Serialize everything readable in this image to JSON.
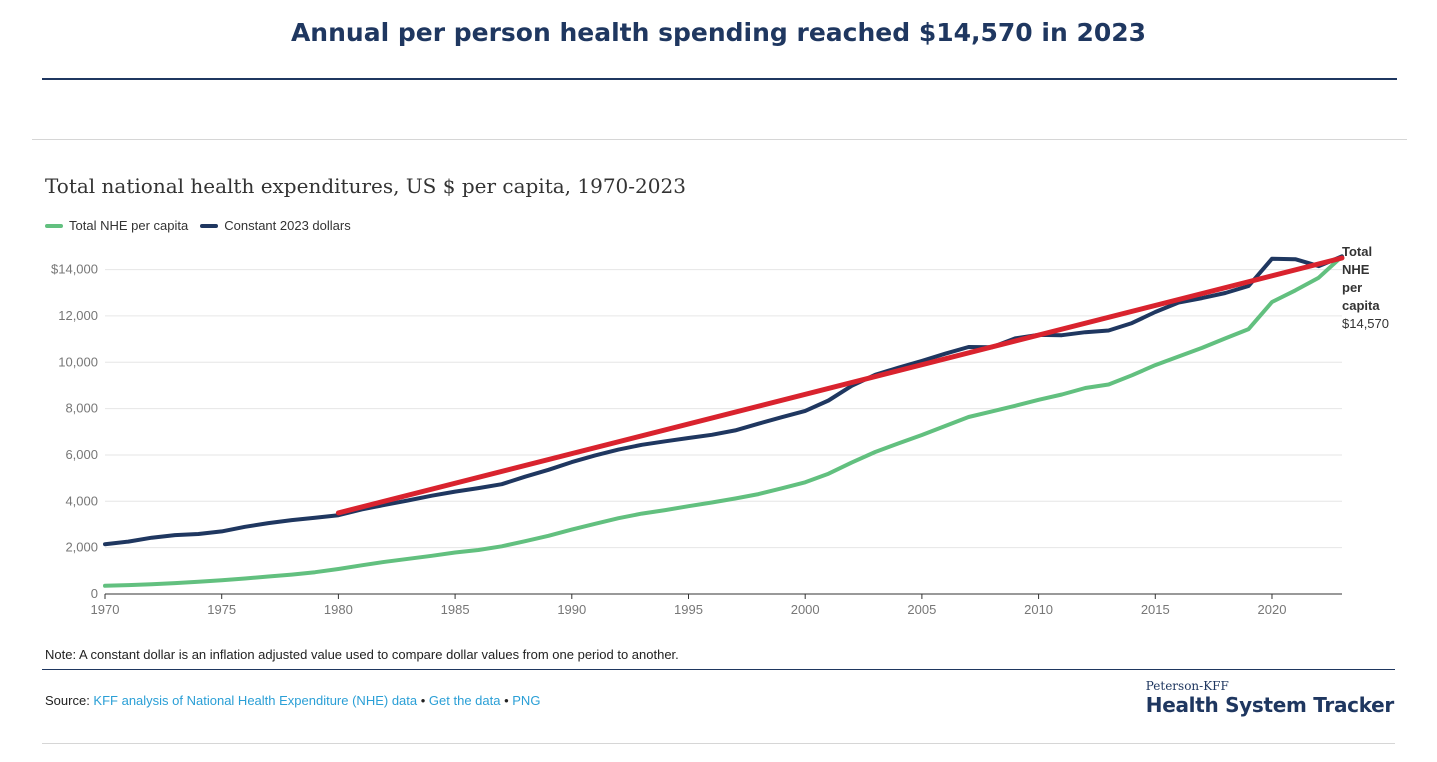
{
  "headline": "Annual per person health spending reached $14,570 in 2023",
  "note": "Note: A constant dollar is an inflation adjusted value used to compare dollar values from one period to another.",
  "source": {
    "prefix": "Source: ",
    "link1": "KFF analysis of National Health Expenditure (NHE) data",
    "sep": " • ",
    "link2": "Get the data",
    "link3": "PNG"
  },
  "brand": {
    "small": "Peterson-KFF",
    "big": "Health System Tracker"
  },
  "chart_data": {
    "type": "line",
    "title": "Total national health expenditures, US $ per capita, 1970-2023",
    "xlabel": "",
    "ylabel": "",
    "xlim": [
      1970,
      2023
    ],
    "ylim": [
      0,
      14000
    ],
    "y_ticks": [
      0,
      2000,
      4000,
      6000,
      8000,
      10000,
      12000,
      14000
    ],
    "y_tick_labels": [
      "0",
      "2,000",
      "4,000",
      "6,000",
      "8,000",
      "10,000",
      "12,000",
      "$14,000"
    ],
    "x_ticks": [
      1970,
      1975,
      1980,
      1985,
      1990,
      1995,
      2000,
      2005,
      2010,
      2015,
      2020
    ],
    "grid": true,
    "legend_position": "top-left",
    "end_label": [
      "Total",
      "NHE",
      "per",
      "capita",
      "$14,570"
    ],
    "trend": {
      "color": "#d9232e",
      "from": [
        1980,
        3500
      ],
      "to": [
        2023,
        14500
      ]
    },
    "series": [
      {
        "name": "Total NHE per capita",
        "color": "#62c07f",
        "x": [
          1970,
          1971,
          1972,
          1973,
          1974,
          1975,
          1976,
          1977,
          1978,
          1979,
          1980,
          1981,
          1982,
          1983,
          1984,
          1985,
          1986,
          1987,
          1988,
          1989,
          1990,
          1991,
          1992,
          1993,
          1994,
          1995,
          1996,
          1997,
          1998,
          1999,
          2000,
          2001,
          2002,
          2003,
          2004,
          2005,
          2006,
          2007,
          2008,
          2009,
          2010,
          2011,
          2012,
          2013,
          2014,
          2015,
          2016,
          2017,
          2018,
          2019,
          2020,
          2021,
          2022,
          2023
        ],
        "y": [
          353,
          384,
          425,
          469,
          526,
          590,
          670,
          756,
          837,
          940,
          1080,
          1240,
          1390,
          1520,
          1650,
          1790,
          1900,
          2060,
          2280,
          2510,
          2780,
          3030,
          3270,
          3470,
          3620,
          3790,
          3950,
          4120,
          4310,
          4560,
          4820,
          5190,
          5680,
          6130,
          6500,
          6860,
          7250,
          7640,
          7880,
          8120,
          8380,
          8610,
          8890,
          9040,
          9440,
          9880,
          10250,
          10620,
          11030,
          11430,
          12600,
          13100,
          13650,
          14570
        ]
      },
      {
        "name": "Constant 2023 dollars",
        "color": "#1f3760",
        "x": [
          1970,
          1971,
          1972,
          1973,
          1974,
          1975,
          1976,
          1977,
          1978,
          1979,
          1980,
          1981,
          1982,
          1983,
          1984,
          1985,
          1986,
          1987,
          1988,
          1989,
          1990,
          1991,
          1992,
          1993,
          1994,
          1995,
          1996,
          1997,
          1998,
          1999,
          2000,
          2001,
          2002,
          2003,
          2004,
          2005,
          2006,
          2007,
          2008,
          2009,
          2010,
          2011,
          2012,
          2013,
          2014,
          2015,
          2016,
          2017,
          2018,
          2019,
          2020,
          2021,
          2022,
          2023
        ],
        "y": [
          2150,
          2260,
          2430,
          2540,
          2590,
          2700,
          2900,
          3060,
          3190,
          3290,
          3400,
          3650,
          3850,
          4040,
          4240,
          4420,
          4570,
          4740,
          5060,
          5360,
          5690,
          5980,
          6230,
          6440,
          6590,
          6730,
          6870,
          7060,
          7350,
          7630,
          7900,
          8350,
          8990,
          9460,
          9770,
          10060,
          10370,
          10660,
          10650,
          11030,
          11180,
          11170,
          11300,
          11370,
          11690,
          12170,
          12580,
          12770,
          12990,
          13290,
          14470,
          14450,
          14150,
          14570
        ]
      }
    ]
  }
}
